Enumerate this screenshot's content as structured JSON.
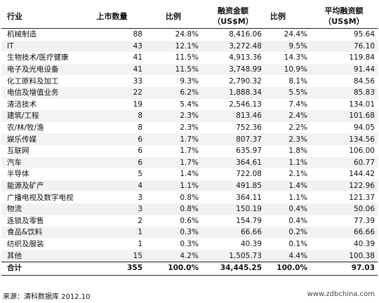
{
  "headers": {
    "industry": "行业",
    "count": "上市数量",
    "ratio1": "比例",
    "amount_line1": "融资金额",
    "amount_line2": "（US$M）",
    "ratio2": "比例",
    "avg_line1": "平均融资额",
    "avg_line2": "（US$M）"
  },
  "rows": [
    {
      "industry": "机械制造",
      "count": "88",
      "ratio1": "24.8%",
      "amount": "8,416.06",
      "ratio2": "24.4%",
      "avg": "95.64"
    },
    {
      "industry": "IT",
      "count": "43",
      "ratio1": "12.1%",
      "amount": "3,272.48",
      "ratio2": "9.5%",
      "avg": "76.10"
    },
    {
      "industry": "生物技术/医疗健康",
      "count": "41",
      "ratio1": "11.5%",
      "amount": "4,913.36",
      "ratio2": "14.3%",
      "avg": "119.84"
    },
    {
      "industry": "电子及光电设备",
      "count": "41",
      "ratio1": "11.5%",
      "amount": "3,748.99",
      "ratio2": "10.9%",
      "avg": "91.44"
    },
    {
      "industry": "化工原料及加工",
      "count": "33",
      "ratio1": "9.3%",
      "amount": "2,790.32",
      "ratio2": "8.1%",
      "avg": "84.56"
    },
    {
      "industry": "电信及增值业务",
      "count": "22",
      "ratio1": "6.2%",
      "amount": "1,888.34",
      "ratio2": "5.5%",
      "avg": "85.83"
    },
    {
      "industry": "清洁技术",
      "count": "19",
      "ratio1": "5.4%",
      "amount": "2,546.13",
      "ratio2": "7.4%",
      "avg": "134.01"
    },
    {
      "industry": "建筑/工程",
      "count": "8",
      "ratio1": "2.3%",
      "amount": "813.46",
      "ratio2": "2.4%",
      "avg": "101.68"
    },
    {
      "industry": "农/林/牧/渔",
      "count": "8",
      "ratio1": "2.3%",
      "amount": "752.36",
      "ratio2": "2.2%",
      "avg": "94.05"
    },
    {
      "industry": "娱乐传媒",
      "count": "6",
      "ratio1": "1.7%",
      "amount": "807.37",
      "ratio2": "2.3%",
      "avg": "134.56"
    },
    {
      "industry": "互联网",
      "count": "6",
      "ratio1": "1.7%",
      "amount": "635.97",
      "ratio2": "1.8%",
      "avg": "106.00"
    },
    {
      "industry": "汽车",
      "count": "6",
      "ratio1": "1.7%",
      "amount": "364.61",
      "ratio2": "1.1%",
      "avg": "60.77"
    },
    {
      "industry": "半导体",
      "count": "5",
      "ratio1": "1.4%",
      "amount": "722.08",
      "ratio2": "2.1%",
      "avg": "144.42"
    },
    {
      "industry": "能源及矿产",
      "count": "4",
      "ratio1": "1.1%",
      "amount": "491.85",
      "ratio2": "1.4%",
      "avg": "122.96"
    },
    {
      "industry": "广播电视及数字电视",
      "count": "3",
      "ratio1": "0.8%",
      "amount": "364.11",
      "ratio2": "1.1%",
      "avg": "121.37"
    },
    {
      "industry": "物流",
      "count": "3",
      "ratio1": "0.8%",
      "amount": "150.19",
      "ratio2": "0.4%",
      "avg": "50.06"
    },
    {
      "industry": "连锁及零售",
      "count": "2",
      "ratio1": "0.6%",
      "amount": "154.79",
      "ratio2": "0.4%",
      "avg": "77.39"
    },
    {
      "industry": "食品&饮料",
      "count": "1",
      "ratio1": "0.3%",
      "amount": "66.66",
      "ratio2": "0.2%",
      "avg": "66.66"
    },
    {
      "industry": "纺织及服装",
      "count": "1",
      "ratio1": "0.3%",
      "amount": "40.39",
      "ratio2": "0.1%",
      "avg": "40.39"
    },
    {
      "industry": "其他",
      "count": "15",
      "ratio1": "4.2%",
      "amount": "1,505.73",
      "ratio2": "4.4%",
      "avg": "100.38"
    }
  ],
  "total": {
    "industry": "合计",
    "count": "355",
    "ratio1": "100.0%",
    "amount": "34,445.25",
    "ratio2": "100.0%",
    "avg": "97.03"
  },
  "footer": {
    "source": "来源：清科数据库 2012.10",
    "site": "www.zdbchina.com"
  }
}
